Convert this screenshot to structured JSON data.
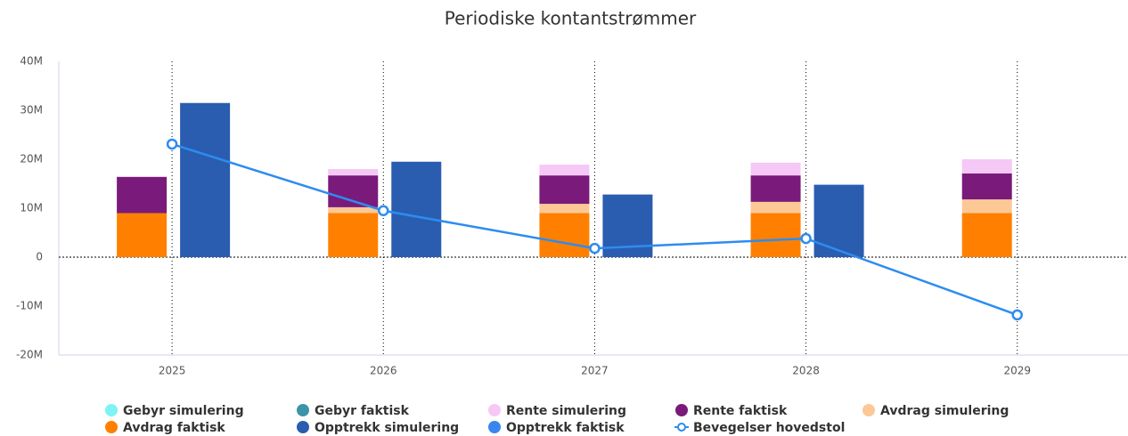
{
  "chart_data": {
    "type": "bar",
    "title": "Periodiske kontantstrømmer",
    "categories": [
      "2025",
      "2026",
      "2027",
      "2028",
      "2029"
    ],
    "ylim": [
      -20,
      40
    ],
    "yticks": [
      {
        "value": -20,
        "label": "-20M"
      },
      {
        "value": -10,
        "label": "-10M"
      },
      0,
      {
        "value": 10,
        "label": "10M"
      },
      {
        "value": 20,
        "label": "20M"
      },
      {
        "value": 30,
        "label": "30M"
      },
      {
        "value": 40,
        "label": "40M"
      }
    ],
    "series": [
      {
        "name": "Gebyr simulering",
        "color": "#7ff3f3",
        "type": "bar",
        "stack": 0,
        "values": [
          0,
          0,
          0,
          0,
          0
        ]
      },
      {
        "name": "Gebyr faktisk",
        "color": "#3a95a8",
        "type": "bar",
        "stack": 0,
        "values": [
          0,
          0,
          0,
          0,
          0
        ]
      },
      {
        "name": "Rente simulering",
        "color": "#f5c8f5",
        "type": "bar",
        "stack": 0,
        "values": [
          0,
          1.3,
          2.2,
          2.6,
          2.9
        ]
      },
      {
        "name": "Rente faktisk",
        "color": "#7a1a7a",
        "type": "bar",
        "stack": 0,
        "values": [
          7.4,
          6.5,
          5.8,
          5.4,
          5.3
        ]
      },
      {
        "name": "Avdrag simulering",
        "color": "#fcc896",
        "type": "bar",
        "stack": 0,
        "values": [
          0,
          1.2,
          1.9,
          2.3,
          2.8
        ]
      },
      {
        "name": "Avdrag faktisk",
        "color": "#ff8000",
        "type": "bar",
        "stack": 0,
        "values": [
          9,
          9,
          9,
          9,
          9
        ]
      },
      {
        "name": "Opptrekk simulering",
        "color": "#2a5db0",
        "type": "bar",
        "stack": 1,
        "values": [
          31.5,
          19.5,
          12.8,
          14.8,
          0
        ]
      },
      {
        "name": "Opptrekk faktisk",
        "color": "#3a86f0",
        "type": "bar",
        "stack": 1,
        "values": [
          0,
          0,
          0,
          0,
          0
        ]
      },
      {
        "name": "Bevegelser hovedstol",
        "color": "#2d8cf0",
        "type": "line",
        "values": [
          23.1,
          9.5,
          1.8,
          3.8,
          -11.8
        ]
      }
    ]
  }
}
